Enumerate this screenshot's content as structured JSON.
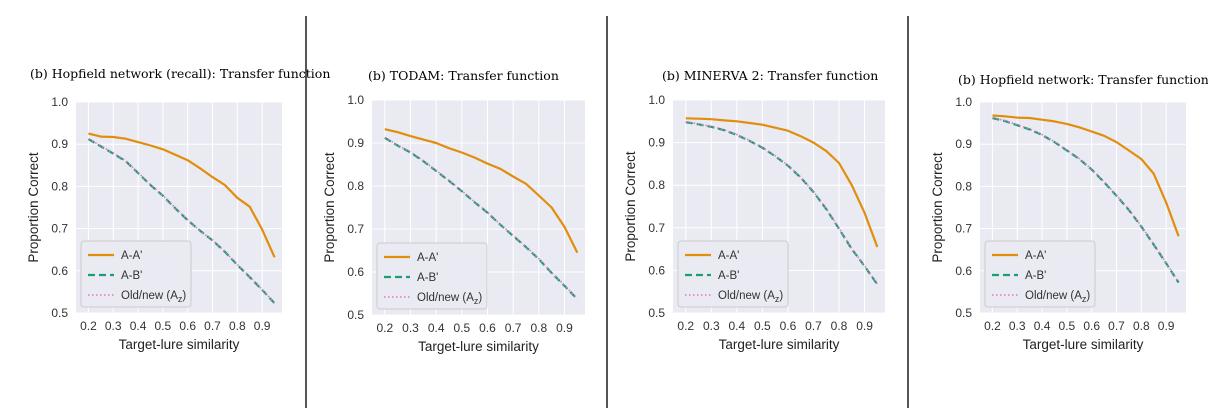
{
  "separators": [
    1,
    2,
    3
  ],
  "legend_entries": [
    {
      "label": "A-A'",
      "color": "#e08e0b",
      "style": "solid"
    },
    {
      "label": "A-B'",
      "color": "#1a9e77",
      "style": "dashed"
    },
    {
      "label": "Old/new (A",
      "sub": "z",
      "suffix": ")",
      "color": "#e377c2",
      "style": "dotted"
    }
  ],
  "chart_data": [
    {
      "type": "line",
      "title": "(b) Hopfield network (recall): Transfer function",
      "xlabel": "Target-lure similarity",
      "ylabel": "Proportion Correct",
      "xlim": [
        0.15,
        0.98
      ],
      "ylim": [
        0.5,
        1.0
      ],
      "xticks": [
        "0.2",
        "0.3",
        "0.4",
        "0.5",
        "0.6",
        "0.7",
        "0.8",
        "0.9"
      ],
      "yticks": [
        "0.5",
        "0.6",
        "0.7",
        "0.8",
        "0.9",
        "1.0"
      ],
      "grid": true,
      "legend": "bottom-left",
      "x": [
        0.2,
        0.25,
        0.3,
        0.35,
        0.4,
        0.45,
        0.5,
        0.55,
        0.6,
        0.65,
        0.7,
        0.75,
        0.8,
        0.85,
        0.9,
        0.95
      ],
      "series": [
        {
          "name": "A-A'",
          "values": [
            0.925,
            0.918,
            0.917,
            0.913,
            0.905,
            0.897,
            0.888,
            0.875,
            0.862,
            0.843,
            0.822,
            0.803,
            0.773,
            0.752,
            0.698,
            0.632
          ]
        },
        {
          "name": "A-B'",
          "values": [
            0.912,
            0.895,
            0.878,
            0.86,
            0.832,
            0.803,
            0.778,
            0.748,
            0.72,
            0.695,
            0.672,
            0.645,
            0.614,
            0.585,
            0.555,
            0.523
          ]
        },
        {
          "name": "Old/new (Az)",
          "values": [
            0.913,
            0.896,
            0.879,
            0.861,
            0.833,
            0.804,
            0.779,
            0.749,
            0.721,
            0.694,
            0.673,
            0.646,
            0.615,
            0.586,
            0.556,
            0.524
          ]
        }
      ]
    },
    {
      "type": "line",
      "title": "(b) TODAM: Transfer function",
      "xlabel": "Target-lure similarity",
      "ylabel": "Proportion Correct",
      "xlim": [
        0.15,
        0.98
      ],
      "ylim": [
        0.5,
        1.0
      ],
      "xticks": [
        "0.2",
        "0.3",
        "0.4",
        "0.5",
        "0.6",
        "0.7",
        "0.8",
        "0.9"
      ],
      "yticks": [
        "0.5",
        "0.6",
        "0.7",
        "0.8",
        "0.9",
        "1.0"
      ],
      "grid": true,
      "legend": "bottom-left",
      "x": [
        0.2,
        0.25,
        0.3,
        0.35,
        0.4,
        0.45,
        0.5,
        0.55,
        0.6,
        0.65,
        0.7,
        0.75,
        0.8,
        0.85,
        0.9,
        0.95
      ],
      "series": [
        {
          "name": "A-A'",
          "values": [
            0.932,
            0.925,
            0.916,
            0.908,
            0.9,
            0.888,
            0.878,
            0.866,
            0.852,
            0.84,
            0.822,
            0.805,
            0.778,
            0.75,
            0.705,
            0.645
          ]
        },
        {
          "name": "A-B'",
          "values": [
            0.912,
            0.894,
            0.878,
            0.858,
            0.835,
            0.812,
            0.788,
            0.762,
            0.738,
            0.71,
            0.684,
            0.658,
            0.63,
            0.598,
            0.568,
            0.537
          ]
        },
        {
          "name": "Old/new (Az)",
          "values": [
            0.913,
            0.895,
            0.879,
            0.859,
            0.836,
            0.813,
            0.789,
            0.763,
            0.739,
            0.711,
            0.685,
            0.659,
            0.631,
            0.599,
            0.569,
            0.538
          ]
        }
      ]
    },
    {
      "type": "line",
      "title": "(b) MINERVA 2: Transfer function",
      "xlabel": "Target-lure similarity",
      "ylabel": "Proportion Correct",
      "xlim": [
        0.15,
        0.98
      ],
      "ylim": [
        0.5,
        1.0
      ],
      "xticks": [
        "0.2",
        "0.3",
        "0.4",
        "0.5",
        "0.6",
        "0.7",
        "0.8",
        "0.9"
      ],
      "yticks": [
        "0.5",
        "0.6",
        "0.7",
        "0.8",
        "0.9",
        "1.0"
      ],
      "grid": true,
      "legend": "bottom-left",
      "x": [
        0.2,
        0.25,
        0.3,
        0.35,
        0.4,
        0.45,
        0.5,
        0.55,
        0.6,
        0.65,
        0.7,
        0.75,
        0.8,
        0.85,
        0.9,
        0.95
      ],
      "series": [
        {
          "name": "A-A'",
          "values": [
            0.957,
            0.956,
            0.955,
            0.952,
            0.95,
            0.946,
            0.942,
            0.935,
            0.928,
            0.915,
            0.9,
            0.88,
            0.852,
            0.8,
            0.735,
            0.655
          ]
        },
        {
          "name": "A-B'",
          "values": [
            0.948,
            0.943,
            0.937,
            0.929,
            0.918,
            0.904,
            0.888,
            0.868,
            0.846,
            0.818,
            0.784,
            0.744,
            0.698,
            0.65,
            0.61,
            0.567
          ]
        },
        {
          "name": "Old/new (Az)",
          "values": [
            0.949,
            0.944,
            0.938,
            0.93,
            0.919,
            0.905,
            0.889,
            0.869,
            0.847,
            0.819,
            0.785,
            0.745,
            0.699,
            0.651,
            0.611,
            0.568
          ]
        }
      ]
    },
    {
      "type": "line",
      "title": "(b) Hopfield network: Transfer function",
      "xlabel": "Target-lure similarity",
      "ylabel": "Proportion Correct",
      "xlim": [
        0.15,
        0.98
      ],
      "ylim": [
        0.5,
        1.0
      ],
      "xticks": [
        "0.2",
        "0.3",
        "0.4",
        "0.5",
        "0.6",
        "0.7",
        "0.8",
        "0.9"
      ],
      "yticks": [
        "0.5",
        "0.6",
        "0.7",
        "0.8",
        "0.9",
        "1.0"
      ],
      "grid": true,
      "legend": "bottom-left",
      "x": [
        0.2,
        0.25,
        0.3,
        0.35,
        0.4,
        0.45,
        0.5,
        0.55,
        0.6,
        0.65,
        0.7,
        0.75,
        0.8,
        0.85,
        0.9,
        0.95
      ],
      "series": [
        {
          "name": "A-A'",
          "values": [
            0.968,
            0.966,
            0.963,
            0.962,
            0.958,
            0.954,
            0.948,
            0.94,
            0.93,
            0.92,
            0.905,
            0.885,
            0.865,
            0.83,
            0.762,
            0.682
          ]
        },
        {
          "name": "A-B'",
          "values": [
            0.962,
            0.955,
            0.945,
            0.935,
            0.922,
            0.905,
            0.885,
            0.865,
            0.84,
            0.81,
            0.778,
            0.744,
            0.705,
            0.662,
            0.618,
            0.572
          ]
        },
        {
          "name": "Old/new (Az)",
          "values": [
            0.963,
            0.956,
            0.946,
            0.936,
            0.923,
            0.906,
            0.886,
            0.866,
            0.841,
            0.811,
            0.779,
            0.745,
            0.706,
            0.663,
            0.619,
            0.573
          ]
        }
      ]
    }
  ]
}
